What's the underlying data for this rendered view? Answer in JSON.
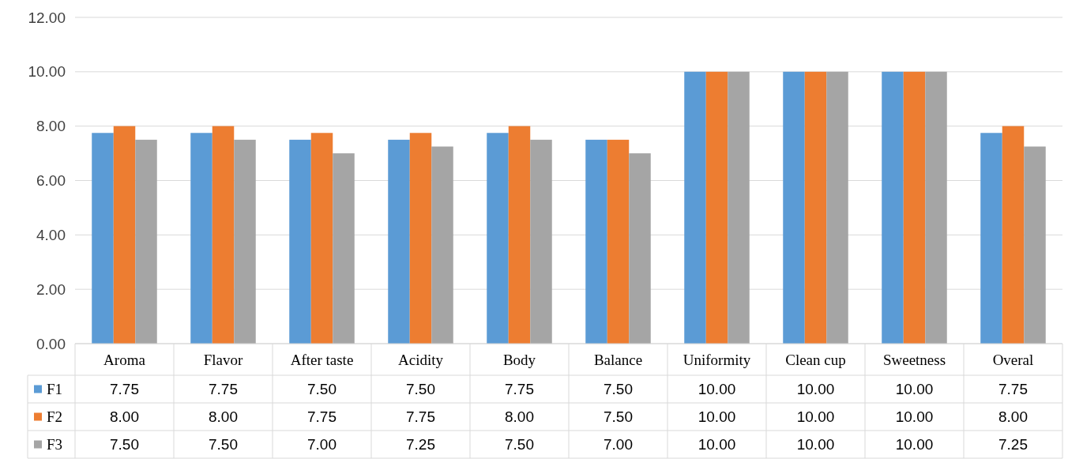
{
  "chart_data": {
    "type": "bar",
    "categories": [
      "Aroma",
      "Flavor",
      "After taste",
      "Acidity",
      "Body",
      "Balance",
      "Uniformity",
      "Clean cup",
      "Sweetness",
      "Overal"
    ],
    "series": [
      {
        "name": "F1",
        "color": "#5b9bd5",
        "values": [
          7.75,
          7.75,
          7.5,
          7.5,
          7.75,
          7.5,
          10,
          10,
          10,
          7.75
        ],
        "value_labels": [
          "7.75",
          "7.75",
          "7.50",
          "7.50",
          "7.75",
          "7.50",
          "10.00",
          "10.00",
          "10.00",
          "7.75"
        ]
      },
      {
        "name": "F2",
        "color": "#ed7d31",
        "values": [
          8,
          8,
          7.75,
          7.75,
          8,
          7.5,
          10,
          10,
          10,
          8
        ],
        "value_labels": [
          "8.00",
          "8.00",
          "7.75",
          "7.75",
          "8.00",
          "7.50",
          "10.00",
          "10.00",
          "10.00",
          "8.00"
        ]
      },
      {
        "name": "F3",
        "color": "#a5a5a5",
        "values": [
          7.5,
          7.5,
          7,
          7.25,
          7.5,
          7,
          10,
          10,
          10,
          7.25
        ],
        "value_labels": [
          "7.50",
          "7.50",
          "7.00",
          "7.25",
          "7.50",
          "7.00",
          "10.00",
          "10.00",
          "10.00",
          "7.25"
        ]
      }
    ],
    "ylim": [
      0,
      12
    ],
    "yticks": [
      {
        "value": 0,
        "label": "0.00"
      },
      {
        "value": 2,
        "label": "2.00"
      },
      {
        "value": 4,
        "label": "4.00"
      },
      {
        "value": 6,
        "label": "6.00"
      },
      {
        "value": 8,
        "label": "8.00"
      },
      {
        "value": 10,
        "label": "10.00"
      },
      {
        "value": 12,
        "label": "12.00"
      }
    ],
    "grid": "y",
    "legend": "bottom"
  }
}
